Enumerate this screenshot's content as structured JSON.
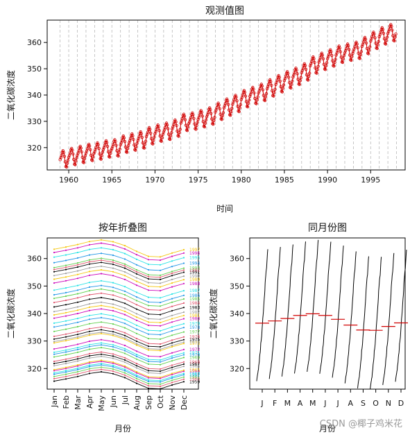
{
  "chart_data": [
    {
      "type": "line",
      "title": "观测值图",
      "xlabel": "时间",
      "ylabel": "二氧化碳浓度",
      "xlim": [
        1957.5,
        1999.0
      ],
      "ylim": [
        311.5,
        368.5
      ],
      "x_ticks": [
        1960,
        1965,
        1970,
        1975,
        1980,
        1985,
        1990,
        1995
      ],
      "y_ticks": [
        320,
        330,
        340,
        350,
        360
      ],
      "grid": "vertical dashed at each year",
      "line_color": "#d00000",
      "start_year": 1959,
      "end_year": 1997,
      "annual_means": [
        315.8,
        316.7,
        317.5,
        318.3,
        318.8,
        319.6,
        320.0,
        321.4,
        322.2,
        323.0,
        324.6,
        325.6,
        326.3,
        327.5,
        329.7,
        330.2,
        331.1,
        332.1,
        333.9,
        335.5,
        336.9,
        338.7,
        339.9,
        341.1,
        342.8,
        344.4,
        345.9,
        347.2,
        348.9,
        351.5,
        352.9,
        354.2,
        355.6,
        356.4,
        357.1,
        358.9,
        360.9,
        362.6,
        363.8
      ],
      "monthly_offsets": [
        -0.4,
        0.4,
        1.3,
        2.4,
        3.0,
        2.3,
        0.9,
        -1.2,
        -3.0,
        -3.2,
        -1.8,
        -0.6
      ]
    },
    {
      "type": "line",
      "title": "按年折叠图",
      "xlabel": "月份",
      "ylabel": "二氧化碳浓度",
      "categories": [
        "Jan",
        "Feb",
        "Mar",
        "Apr",
        "May",
        "Jun",
        "Jul",
        "Aug",
        "Sep",
        "Oct",
        "Nov",
        "Dec"
      ],
      "ylim": [
        312.5,
        367.5
      ],
      "y_ticks": [
        320,
        330,
        340,
        350,
        360
      ],
      "series_colors": [
        "#000000",
        "#df536b",
        "#61d04f",
        "#2297e6",
        "#28e2e5",
        "#cd0bbc",
        "#f5c710",
        "#9e9e9e"
      ],
      "year_labels": [
        "1959",
        "1960",
        "1961",
        "1962",
        "1963",
        "1964",
        "1965",
        "1966",
        "1967",
        "1968",
        "1969",
        "1970",
        "1971",
        "1972",
        "1973",
        "1974",
        "1975",
        "1976",
        "1977",
        "1978",
        "1979",
        "1980",
        "1981",
        "1982",
        "1983",
        "1984",
        "1985",
        "1986",
        "1987",
        "1988",
        "1989",
        "1990",
        "1991",
        "1992",
        "1993",
        "1994",
        "1995",
        "1996",
        "1997"
      ]
    },
    {
      "type": "line",
      "title": "同月份图",
      "xlabel": "月份",
      "ylabel": "二氧化碳浓度",
      "categories": [
        "J",
        "F",
        "M",
        "A",
        "M",
        "J",
        "J",
        "A",
        "S",
        "O",
        "N",
        "D"
      ],
      "ylim": [
        312.5,
        367.5
      ],
      "y_ticks": [
        320,
        330,
        340,
        350,
        360
      ],
      "monthly_means": [
        336.5,
        337.3,
        338.2,
        339.3,
        339.9,
        339.3,
        337.9,
        335.8,
        334.0,
        333.9,
        335.3,
        336.6
      ],
      "mean_color": "#d00000"
    }
  ],
  "watermark": "CSDN @椰子鸡米花"
}
